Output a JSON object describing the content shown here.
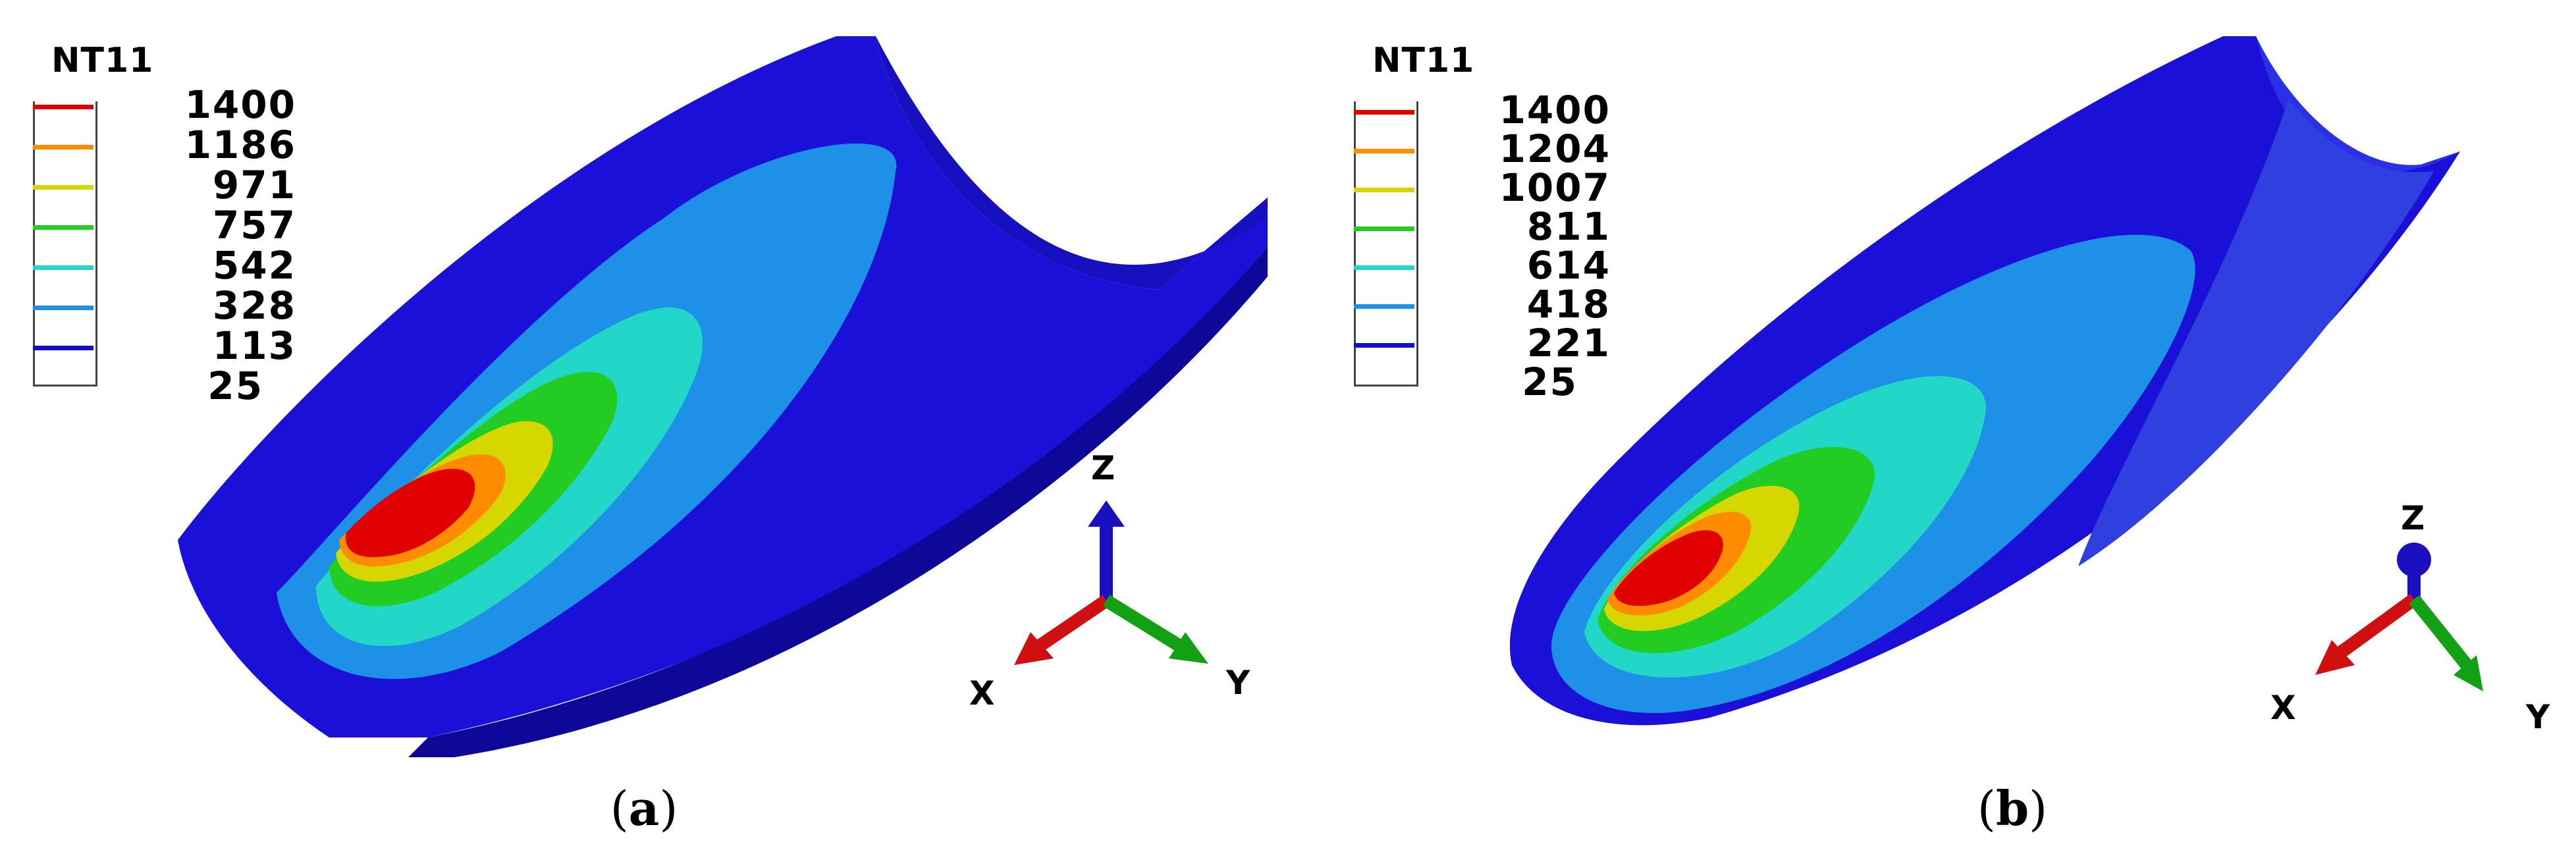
{
  "panels": [
    {
      "legend": {
        "title": "NT11",
        "levels": [
          {
            "value": "1400",
            "color": "#e00000"
          },
          {
            "value": "1186",
            "color": "#ff8c00"
          },
          {
            "value": "971",
            "color": "#d6d600"
          },
          {
            "value": "757",
            "color": "#22cc22"
          },
          {
            "value": "542",
            "color": "#22d6c8"
          },
          {
            "value": "328",
            "color": "#1e90e8"
          },
          {
            "value": "113",
            "color": "#1010d0"
          },
          {
            "value": "25",
            "color": "#000000"
          }
        ]
      },
      "axes": {
        "x": "X",
        "y": "Y",
        "z": "Z"
      },
      "caption_letter": "a"
    },
    {
      "legend": {
        "title": "NT11",
        "levels": [
          {
            "value": "1400",
            "color": "#e00000"
          },
          {
            "value": "1204",
            "color": "#ff8c00"
          },
          {
            "value": "1007",
            "color": "#d6d600"
          },
          {
            "value": "811",
            "color": "#22cc22"
          },
          {
            "value": "614",
            "color": "#22d6c8"
          },
          {
            "value": "418",
            "color": "#1e90e8"
          },
          {
            "value": "221",
            "color": "#1010d0"
          },
          {
            "value": "25",
            "color": "#000000"
          }
        ]
      },
      "axes": {
        "x": "X",
        "y": "Y",
        "z": "Z"
      },
      "caption_letter": "b"
    }
  ],
  "colors": {
    "substrate": "#1a10d8",
    "substrate_dark": "#0e0898",
    "band_328": "#1e90e8",
    "band_542": "#22d6c8",
    "band_757": "#22cc22",
    "band_971": "#d6d600",
    "band_1186": "#ff8c00",
    "band_1400": "#e00000",
    "axis_x": "#d01010",
    "axis_y": "#14a014",
    "axis_z": "#1a10c0"
  }
}
